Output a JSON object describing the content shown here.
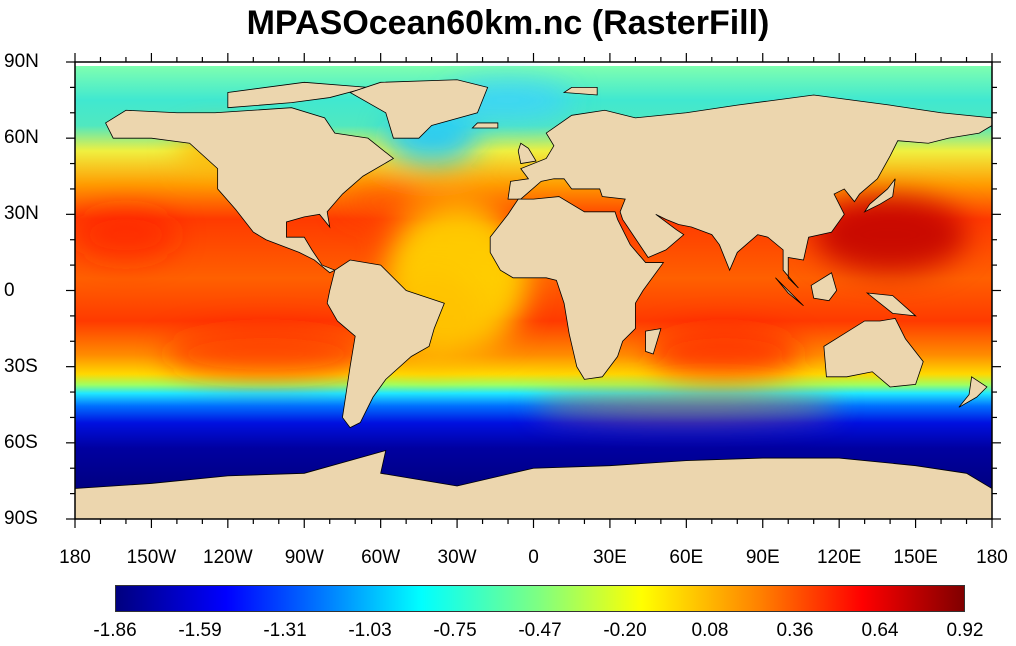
{
  "title": "MPASOcean60km.nc (RasterFill)",
  "axes": {
    "lat_labels": [
      "90N",
      "60N",
      "30N",
      "0",
      "30S",
      "60S",
      "90S"
    ],
    "lon_labels": [
      "180",
      "150W",
      "120W",
      "90W",
      "60W",
      "30W",
      "0",
      "30E",
      "60E",
      "90E",
      "120E",
      "150E",
      "180"
    ]
  },
  "chart_data": {
    "type": "heatmap",
    "title": "MPASOcean60km.nc (RasterFill)",
    "projection": "cylindrical equidistant",
    "lat_range": [
      -90,
      90
    ],
    "lon_range": [
      -180,
      180
    ],
    "colorbar": {
      "min": -1.86,
      "max": 0.92,
      "labels": [
        "-1.86",
        "-1.59",
        "-1.31",
        "-1.03",
        "-0.75",
        "-0.47",
        "-0.20",
        "0.08",
        "0.36",
        "0.64",
        "0.92"
      ],
      "colormap": [
        "#00007f",
        "#0000ff",
        "#0080ff",
        "#00ffff",
        "#80ff80",
        "#ffff00",
        "#ff8000",
        "#ff0000",
        "#800000"
      ],
      "orientation": "horizontal",
      "placement": "bottom"
    },
    "land_color": "#ecd6ae"
  }
}
